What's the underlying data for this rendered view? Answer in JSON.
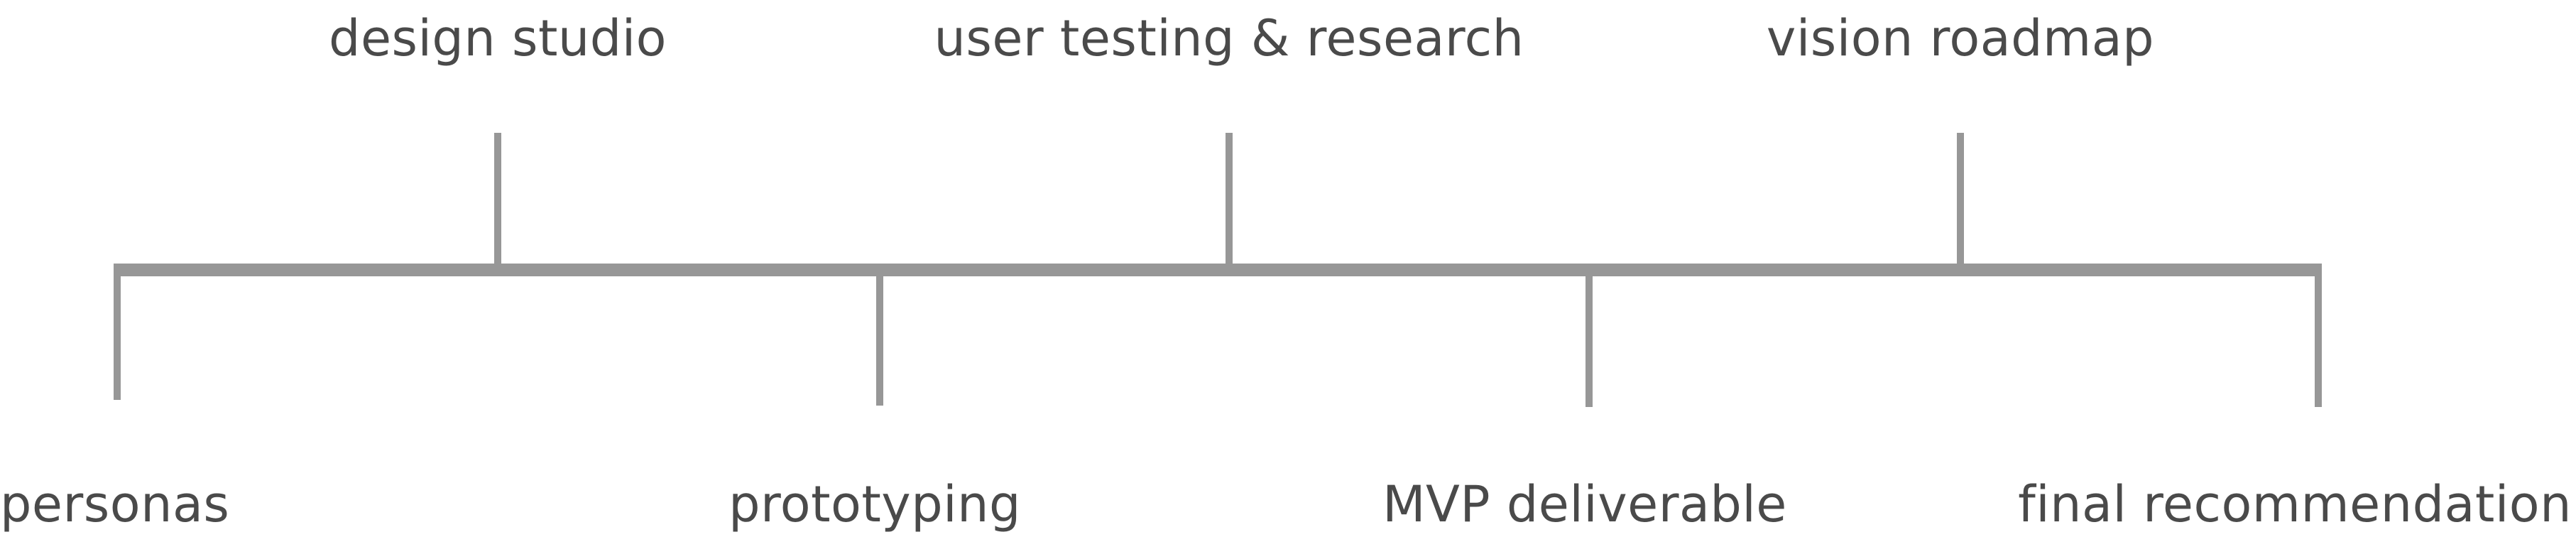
{
  "timeline": {
    "top_milestones": [
      {
        "label": "design studio"
      },
      {
        "label": "user testing & research"
      },
      {
        "label": "vision roadmap"
      }
    ],
    "bottom_milestones": [
      {
        "label": "personas"
      },
      {
        "label": "prototyping"
      },
      {
        "label": "MVP deliverable"
      },
      {
        "label": "final recommendation"
      }
    ],
    "line_color": "#979797",
    "text_color": "#4a4a4a"
  }
}
